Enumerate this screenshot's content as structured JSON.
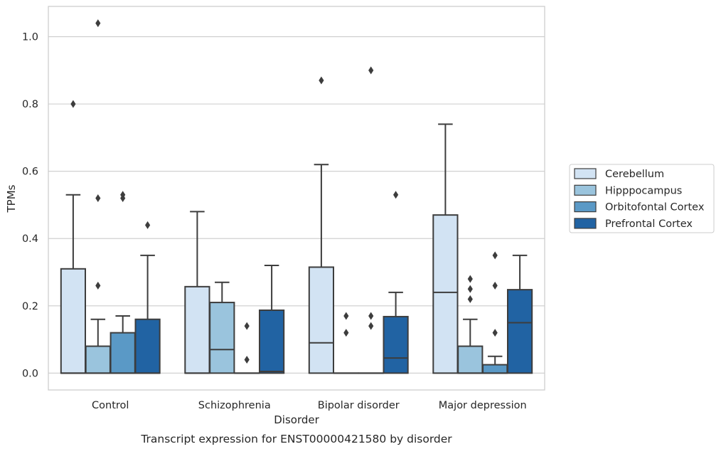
{
  "chart_data": {
    "type": "box",
    "title": "",
    "caption": "Transcript expression for ENST00000421580 by disorder",
    "xlabel": "Disorder",
    "ylabel": "TPMs",
    "ylim": [
      -0.05,
      1.09
    ],
    "yticks": [
      0.0,
      0.2,
      0.4,
      0.6,
      0.8,
      1.0
    ],
    "ytick_labels": [
      "0.0",
      "0.2",
      "0.4",
      "0.6",
      "0.8",
      "1.0"
    ],
    "grid": "horizontal",
    "legend_position": "right",
    "categories": [
      "Control",
      "Schizophrenia",
      "Bipolar disorder",
      "Major depression"
    ],
    "series": [
      {
        "name": "Cerebellum",
        "color": "#d2e3f3",
        "boxes": [
          {
            "q1": 0.0,
            "median": 0.0,
            "q3": 0.31,
            "whisker_low": 0.0,
            "whisker_high": 0.53,
            "outliers": [
              0.8
            ]
          },
          {
            "q1": 0.0,
            "median": 0.0,
            "q3": 0.257,
            "whisker_low": 0.0,
            "whisker_high": 0.48,
            "outliers": []
          },
          {
            "q1": 0.0,
            "median": 0.09,
            "q3": 0.315,
            "whisker_low": 0.0,
            "whisker_high": 0.62,
            "outliers": [
              0.87
            ]
          },
          {
            "q1": 0.0,
            "median": 0.24,
            "q3": 0.47,
            "whisker_low": 0.0,
            "whisker_high": 0.74,
            "outliers": []
          }
        ]
      },
      {
        "name": "Hipppocampus",
        "color": "#9ac4dd",
        "boxes": [
          {
            "q1": 0.0,
            "median": 0.0,
            "q3": 0.08,
            "whisker_low": 0.0,
            "whisker_high": 0.16,
            "outliers": [
              0.26,
              0.52,
              1.04
            ]
          },
          {
            "q1": 0.0,
            "median": 0.07,
            "q3": 0.21,
            "whisker_low": 0.0,
            "whisker_high": 0.27,
            "outliers": []
          },
          {
            "q1": 0.0,
            "median": 0.0,
            "q3": 0.0,
            "whisker_low": 0.0,
            "whisker_high": 0.0,
            "outliers": [
              0.12,
              0.17
            ]
          },
          {
            "q1": 0.0,
            "median": 0.0,
            "q3": 0.08,
            "whisker_low": 0.0,
            "whisker_high": 0.16,
            "outliers": [
              0.22,
              0.25,
              0.28
            ]
          }
        ]
      },
      {
        "name": "Orbitofontal Cortex",
        "color": "#5a99c6",
        "boxes": [
          {
            "q1": 0.0,
            "median": 0.0,
            "q3": 0.12,
            "whisker_low": 0.0,
            "whisker_high": 0.17,
            "outliers": [
              0.52,
              0.53
            ]
          },
          {
            "q1": 0.0,
            "median": 0.0,
            "q3": 0.0,
            "whisker_low": 0.0,
            "whisker_high": 0.0,
            "outliers": [
              0.04,
              0.14
            ]
          },
          {
            "q1": 0.0,
            "median": 0.0,
            "q3": 0.0,
            "whisker_low": 0.0,
            "whisker_high": 0.0,
            "outliers": [
              0.14,
              0.17,
              0.9
            ]
          },
          {
            "q1": 0.0,
            "median": 0.0,
            "q3": 0.025,
            "whisker_low": 0.0,
            "whisker_high": 0.05,
            "outliers": [
              0.12,
              0.26,
              0.35
            ]
          }
        ]
      },
      {
        "name": "Prefrontal Cortex",
        "color": "#2163a3",
        "boxes": [
          {
            "q1": 0.0,
            "median": 0.0,
            "q3": 0.16,
            "whisker_low": 0.0,
            "whisker_high": 0.35,
            "outliers": [
              0.44
            ]
          },
          {
            "q1": 0.0,
            "median": 0.005,
            "q3": 0.187,
            "whisker_low": 0.0,
            "whisker_high": 0.32,
            "outliers": []
          },
          {
            "q1": 0.0,
            "median": 0.045,
            "q3": 0.168,
            "whisker_low": 0.0,
            "whisker_high": 0.24,
            "outliers": [
              0.53
            ]
          },
          {
            "q1": 0.0,
            "median": 0.15,
            "q3": 0.248,
            "whisker_low": 0.0,
            "whisker_high": 0.35,
            "outliers": []
          }
        ]
      }
    ]
  }
}
